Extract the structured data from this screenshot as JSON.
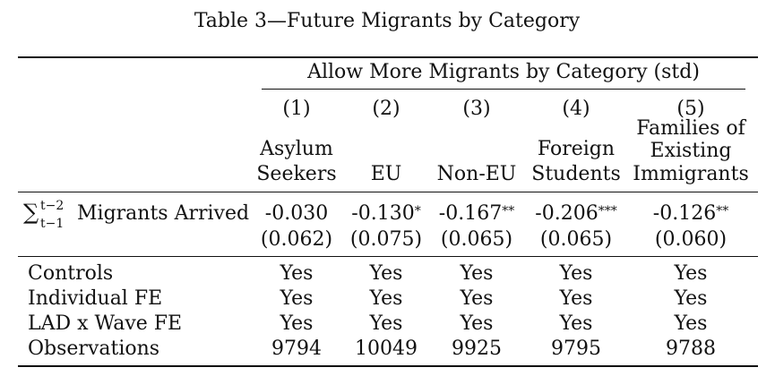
{
  "caption": "Table 3—Future Migrants by Category",
  "group_header": "Allow More Migrants by Category (std)",
  "columns": [
    {
      "num": "(1)",
      "label_lines": [
        "Asylum",
        "Seekers"
      ]
    },
    {
      "num": "(2)",
      "label_lines": [
        "EU"
      ]
    },
    {
      "num": "(3)",
      "label_lines": [
        "Non-EU"
      ]
    },
    {
      "num": "(4)",
      "label_lines": [
        "Foreign",
        "Students"
      ]
    },
    {
      "num": "(5)",
      "label_lines": [
        "Families of",
        "Existing",
        "Immigrants"
      ]
    }
  ],
  "main_row": {
    "label": "Migrants Arrived",
    "sum_upper": "t−2",
    "sum_lower": "t−1",
    "coefs": [
      {
        "value": "-0.030",
        "stars": ""
      },
      {
        "value": "-0.130",
        "stars": "*"
      },
      {
        "value": "-0.167",
        "stars": "**"
      },
      {
        "value": "-0.206",
        "stars": "***"
      },
      {
        "value": "-0.126",
        "stars": "**"
      }
    ],
    "ses": [
      "(0.062)",
      "(0.075)",
      "(0.065)",
      "(0.065)",
      "(0.060)"
    ]
  },
  "rows": [
    {
      "label": "Controls",
      "values": [
        "Yes",
        "Yes",
        "Yes",
        "Yes",
        "Yes"
      ]
    },
    {
      "label": "Individual FE",
      "values": [
        "Yes",
        "Yes",
        "Yes",
        "Yes",
        "Yes"
      ]
    },
    {
      "label": "LAD x Wave FE",
      "values": [
        "Yes",
        "Yes",
        "Yes",
        "Yes",
        "Yes"
      ]
    },
    {
      "label": "Observations",
      "values": [
        "9794",
        "10049",
        "9925",
        "9795",
        "9788"
      ]
    }
  ]
}
